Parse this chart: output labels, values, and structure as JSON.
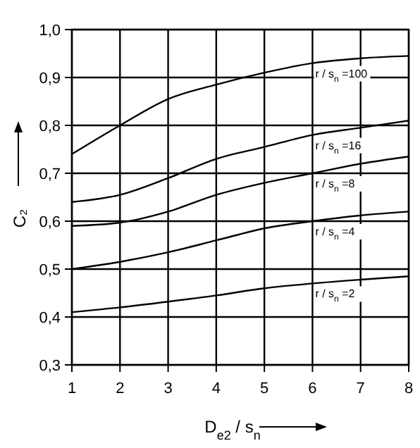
{
  "chart_data": {
    "type": "line",
    "xlabel": "D$_{e2}$ / s$_{n}$",
    "ylabel": "C₂",
    "grid": true,
    "marker": "none",
    "line_style": "solid",
    "x": [
      1,
      2,
      3,
      4,
      5,
      6,
      7,
      8
    ],
    "xlim": [
      1,
      8
    ],
    "xticks": [
      1,
      2,
      3,
      4,
      5,
      6,
      7,
      8
    ],
    "ylim": [
      0.3,
      1.0
    ],
    "yticks": [
      {
        "value": 0.3,
        "label": "0,3"
      },
      {
        "value": 0.4,
        "label": "0,4"
      },
      {
        "value": 0.5,
        "label": "0,5"
      },
      {
        "value": 0.6,
        "label": "0,6"
      },
      {
        "value": 0.7,
        "label": "0,7"
      },
      {
        "value": 0.8,
        "label": "0,8"
      },
      {
        "value": 0.9,
        "label": "0,9"
      },
      {
        "value": 1.0,
        "label": "1,0"
      }
    ],
    "series": [
      {
        "name": "r / s$_{n}$ =100",
        "color": "#000000",
        "values": [
          0.74,
          0.8,
          0.855,
          0.885,
          0.91,
          0.93,
          0.94,
          0.945
        ]
      },
      {
        "name": "r / s$_{n}$ =16",
        "color": "#000000",
        "values": [
          0.64,
          0.655,
          0.69,
          0.73,
          0.755,
          0.78,
          0.795,
          0.81
        ]
      },
      {
        "name": "r / s$_{n}$ =8",
        "color": "#000000",
        "values": [
          0.59,
          0.597,
          0.62,
          0.655,
          0.68,
          0.7,
          0.72,
          0.735
        ]
      },
      {
        "name": "r / s$_{n}$ =4",
        "color": "#000000",
        "values": [
          0.5,
          0.515,
          0.535,
          0.56,
          0.585,
          0.6,
          0.612,
          0.62
        ]
      },
      {
        "name": "r / s$_{n}$ =2",
        "color": "#000000",
        "values": [
          0.41,
          0.42,
          0.432,
          0.445,
          0.46,
          0.47,
          0.478,
          0.485
        ]
      }
    ]
  }
}
